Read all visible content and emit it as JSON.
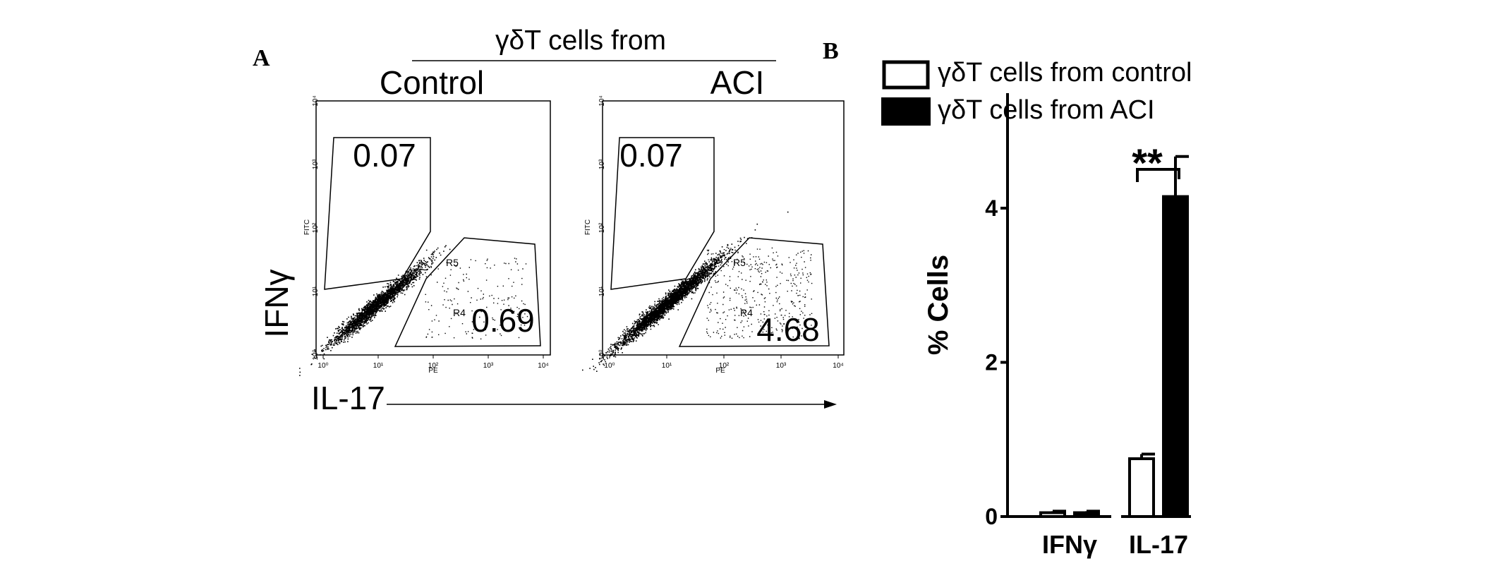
{
  "panel_a": {
    "label": "A",
    "header": "γδT cells from",
    "x_axis_label": "IL-17",
    "y_axis_label": "IFNγ",
    "plots": [
      {
        "title": "Control",
        "upper_gate_value": "0.07",
        "lower_gate_value": "0.69",
        "region_upper": "R5",
        "region_lower": "R4",
        "x_channel": "PE",
        "y_channel": "FITC",
        "x_ticks": [
          "10⁰",
          "10¹",
          "10²",
          "10³",
          "10⁴"
        ],
        "y_ticks": [
          "10⁰",
          "10¹",
          "10²",
          "10³",
          "10⁴"
        ]
      },
      {
        "title": "ACI",
        "upper_gate_value": "0.07",
        "lower_gate_value": "4.68",
        "region_upper": "R5",
        "region_lower": "R4",
        "x_channel": "PE",
        "y_channel": "FITC",
        "x_ticks": [
          "10⁰",
          "10¹",
          "10²",
          "10³",
          "10⁴"
        ],
        "y_ticks": [
          "10⁰",
          "10¹",
          "10²",
          "10³",
          "10⁴"
        ]
      }
    ]
  },
  "panel_b": {
    "label": "B"
  },
  "colors": {
    "ink": "#000000",
    "background": "#ffffff"
  },
  "chart_data": [
    {
      "type": "bar",
      "categories": [
        "IFNγ",
        "IL-17"
      ],
      "series": [
        {
          "name": "γδT cells from control",
          "fill": "#ffffff",
          "values": [
            0.05,
            0.75
          ],
          "errors": [
            0.02,
            0.06
          ]
        },
        {
          "name": "γδT cells from ACI",
          "fill": "#000000",
          "values": [
            0.05,
            4.15
          ],
          "errors": [
            0.02,
            0.52
          ]
        }
      ],
      "ylabel": "% Cells",
      "ylim": [
        0,
        5.4
      ],
      "yticks": [
        0,
        2,
        4
      ],
      "annotations": [
        {
          "text": "**",
          "category": "IL-17"
        }
      ],
      "legend": "top",
      "grid": false
    }
  ]
}
